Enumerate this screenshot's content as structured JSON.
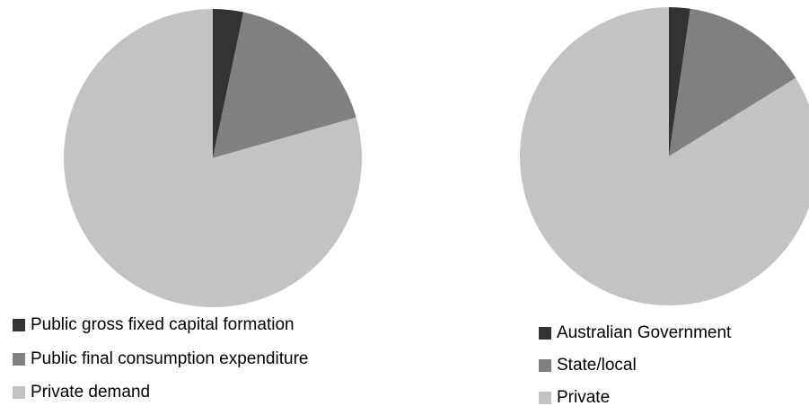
{
  "chart_data": [
    {
      "type": "pie",
      "categories": [
        "Public gross fixed capital formation",
        "Public final consumption expenditure",
        "Private demand"
      ],
      "values": [
        3.3,
        17.3,
        79.4
      ],
      "colors": [
        "#333333",
        "#808080",
        "#c3c3c3"
      ]
    },
    {
      "type": "pie",
      "categories": [
        "Australian Government",
        "State/local",
        "Private"
      ],
      "values": [
        2.3,
        13.9,
        83.8
      ],
      "colors": [
        "#333333",
        "#808080",
        "#c3c3c3"
      ]
    }
  ]
}
